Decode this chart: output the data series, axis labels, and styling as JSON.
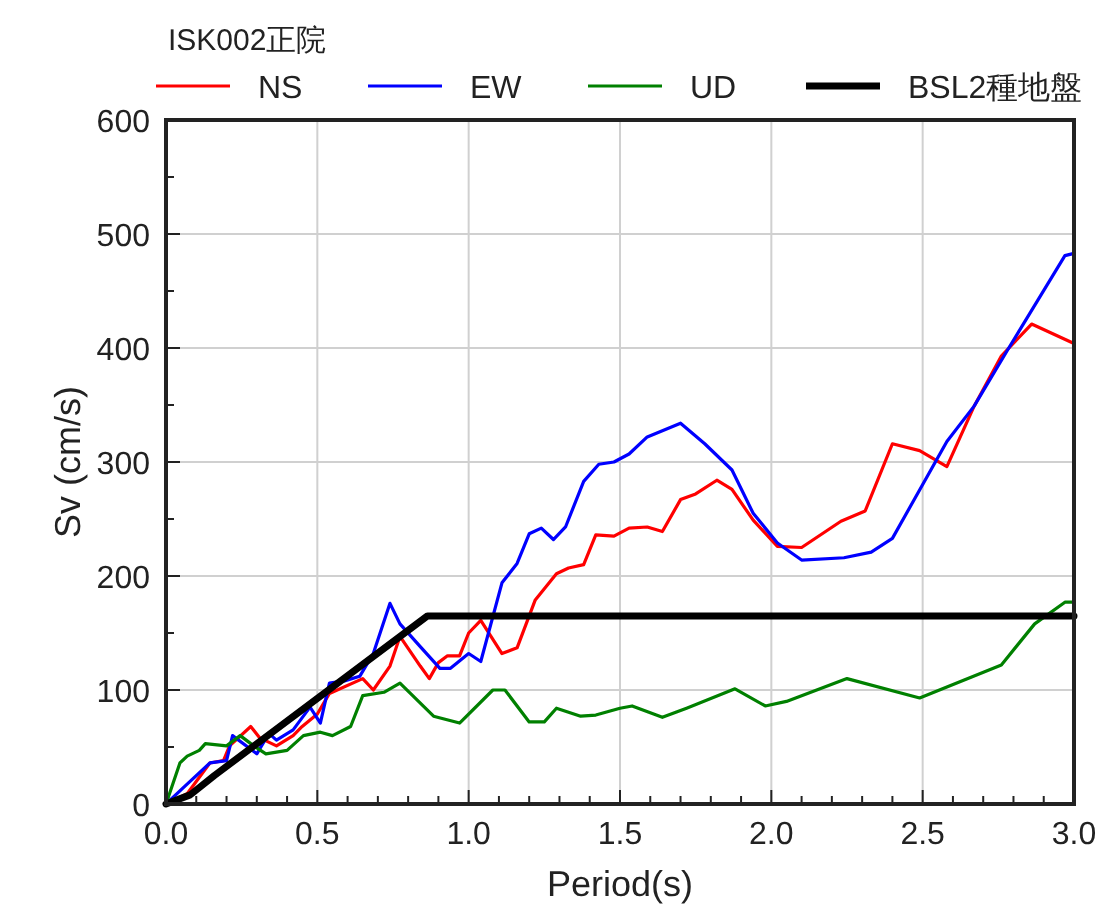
{
  "chart_data": {
    "type": "line",
    "legend_title": "ISK002正院",
    "xlabel": "Period(s)",
    "ylabel": "Sv (cm/s)",
    "xlim": [
      0,
      3
    ],
    "ylim": [
      0,
      600
    ],
    "xticks": [
      {
        "value": 0,
        "label": "0.0"
      },
      {
        "value": 0.1,
        "label": null
      },
      {
        "value": 0.2,
        "label": null
      },
      {
        "value": 0.3,
        "label": null
      },
      {
        "value": 0.4,
        "label": null
      },
      {
        "value": 0.5,
        "label": "0.5"
      },
      {
        "value": 0.6,
        "label": null
      },
      {
        "value": 0.7,
        "label": null
      },
      {
        "value": 0.8,
        "label": null
      },
      {
        "value": 0.9,
        "label": null
      },
      {
        "value": 1,
        "label": "1.0"
      },
      {
        "value": 1.1,
        "label": null
      },
      {
        "value": 1.2,
        "label": null
      },
      {
        "value": 1.3,
        "label": null
      },
      {
        "value": 1.4,
        "label": null
      },
      {
        "value": 1.5,
        "label": "1.5"
      },
      {
        "value": 1.6,
        "label": null
      },
      {
        "value": 1.7,
        "label": null
      },
      {
        "value": 1.8,
        "label": null
      },
      {
        "value": 1.9,
        "label": null
      },
      {
        "value": 2,
        "label": "2.0"
      },
      {
        "value": 2.1,
        "label": null
      },
      {
        "value": 2.2,
        "label": null
      },
      {
        "value": 2.3,
        "label": null
      },
      {
        "value": 2.4,
        "label": null
      },
      {
        "value": 2.5,
        "label": "2.5"
      },
      {
        "value": 2.6,
        "label": null
      },
      {
        "value": 2.7,
        "label": null
      },
      {
        "value": 2.8,
        "label": null
      },
      {
        "value": 2.9,
        "label": null
      },
      {
        "value": 3,
        "label": "3.0"
      }
    ],
    "yticks": [
      0,
      {
        "value": 50,
        "label": null
      },
      100,
      {
        "value": 150,
        "label": null
      },
      200,
      {
        "value": 250,
        "label": null
      },
      300,
      {
        "value": 350,
        "label": null
      },
      400,
      {
        "value": 450,
        "label": null
      },
      500,
      {
        "value": 550,
        "label": null
      },
      600
    ],
    "grid": true,
    "legend": "top",
    "marker": "none",
    "line_style": "solid",
    "series": [
      {
        "name": "NS",
        "color": "#ff0000",
        "x": [
          0,
          0.07,
          0.145,
          0.19,
          0.21,
          0.28,
          0.31,
          0.365,
          0.42,
          0.45,
          0.5,
          0.54,
          0.65,
          0.685,
          0.74,
          0.773,
          0.84,
          0.87,
          0.9,
          0.93,
          0.97,
          1.0,
          1.04,
          1.11,
          1.16,
          1.22,
          1.29,
          1.33,
          1.38,
          1.42,
          1.48,
          1.53,
          1.59,
          1.64,
          1.7,
          1.75,
          1.82,
          1.87,
          1.94,
          2.02,
          2.1,
          2.23,
          2.31,
          2.4,
          2.49,
          2.58,
          2.67,
          2.76,
          2.86,
          3.0
        ],
        "values": [
          0,
          9,
          36,
          38,
          51,
          68,
          58,
          51,
          60,
          68,
          79,
          97,
          110,
          100,
          121,
          147,
          121,
          110,
          124,
          130,
          130,
          150,
          161,
          132,
          137,
          179,
          202,
          207,
          210,
          236,
          235,
          242,
          243,
          239,
          267,
          272,
          284,
          276,
          249,
          226,
          225,
          248,
          257,
          316,
          310,
          296,
          349,
          393,
          421,
          404
        ]
      },
      {
        "name": "EW",
        "color": "#0000ff",
        "x": [
          0,
          0.06,
          0.145,
          0.2,
          0.22,
          0.3,
          0.34,
          0.365,
          0.42,
          0.476,
          0.51,
          0.54,
          0.59,
          0.64,
          0.685,
          0.74,
          0.773,
          0.84,
          0.905,
          0.94,
          1.0,
          1.04,
          1.11,
          1.16,
          1.2,
          1.24,
          1.28,
          1.32,
          1.38,
          1.43,
          1.48,
          1.53,
          1.59,
          1.7,
          1.78,
          1.87,
          1.94,
          2.02,
          2.1,
          2.24,
          2.33,
          2.4,
          2.58,
          2.67,
          2.78,
          2.97,
          3.0
        ],
        "values": [
          0,
          15,
          36,
          38,
          60,
          44,
          62,
          56,
          65,
          85,
          71,
          106,
          108,
          112,
          132,
          176,
          158,
          138,
          119,
          119,
          132,
          125,
          194,
          211,
          237,
          242,
          232,
          243,
          283,
          298,
          300,
          307,
          322,
          334,
          316,
          293,
          255,
          229,
          214,
          216,
          221,
          233,
          318,
          349,
          398,
          481,
          483
        ]
      },
      {
        "name": "UD",
        "color": "#008000",
        "x": [
          0,
          0.046,
          0.07,
          0.11,
          0.13,
          0.2,
          0.245,
          0.29,
          0.33,
          0.4,
          0.454,
          0.51,
          0.55,
          0.61,
          0.65,
          0.72,
          0.773,
          0.884,
          0.97,
          1.08,
          1.12,
          1.2,
          1.25,
          1.29,
          1.37,
          1.42,
          1.5,
          1.54,
          1.64,
          1.72,
          1.88,
          1.98,
          2.05,
          2.25,
          2.49,
          2.76,
          2.87,
          2.97,
          3.0
        ],
        "values": [
          0,
          36,
          42,
          47,
          53,
          51,
          60,
          51,
          44,
          47,
          60,
          63,
          60,
          68,
          95,
          98,
          106,
          77,
          71,
          100,
          100,
          72,
          72,
          84,
          77,
          78,
          84,
          86,
          76,
          84,
          101,
          86,
          90,
          110,
          93,
          122,
          158,
          177,
          177
        ]
      },
      {
        "name": "BSL2種地盤",
        "color": "#000000",
        "x": [
          0,
          0.08,
          0.16,
          0.864,
          3.0
        ],
        "values": [
          0,
          8,
          25,
          165,
          165
        ]
      }
    ]
  }
}
